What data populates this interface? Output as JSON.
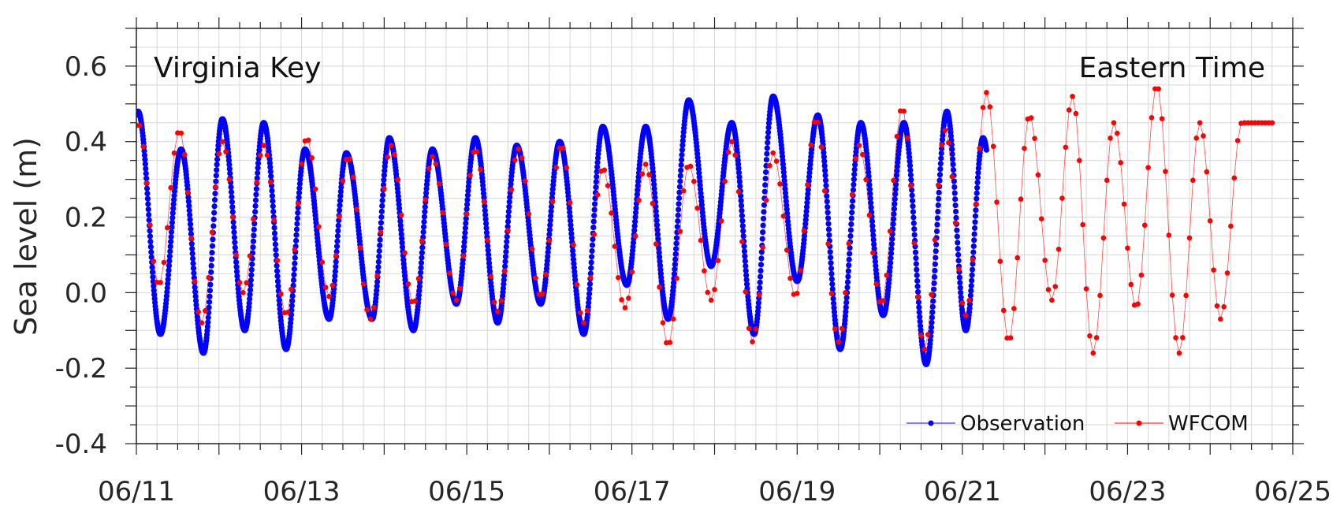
{
  "chart_data": {
    "type": "line",
    "title": "",
    "xlabel": "",
    "ylabel": "Sea level (m)",
    "ylim": [
      -0.4,
      0.7
    ],
    "xlim": [
      "2024-06-11 00:00",
      "2024-06-25 00:00"
    ],
    "x_tick_labels": [
      "06/11",
      "06/13",
      "06/15",
      "06/17",
      "06/19",
      "06/21",
      "06/23",
      "06/25"
    ],
    "y_tick_labels": [
      "-0.4",
      "-0.2",
      "0.0",
      "0.2",
      "0.4",
      "0.6"
    ],
    "y_ticks": [
      -0.4,
      -0.2,
      0.0,
      0.2,
      0.4,
      0.6
    ],
    "grid": true,
    "legend_position": "bottom-right",
    "annotations": {
      "left": "Virginia Key",
      "right": "Eastern Time"
    },
    "tide_period_hours": 12.42,
    "series": [
      {
        "name": "Observation",
        "color": "#0000ff",
        "marker": "dot",
        "x_start": "2024-06-11 00:00",
        "x_end": "2024-06-21 07:00",
        "sample_interval_hours": 0.1,
        "peaks": [
          {
            "x": "2024-06-11 00:30",
            "y": 0.48
          },
          {
            "x": "2024-06-11 13:00",
            "y": 0.38
          },
          {
            "x": "2024-06-12 01:00",
            "y": 0.46
          },
          {
            "x": "2024-06-12 13:00",
            "y": 0.45
          },
          {
            "x": "2024-06-13 01:00",
            "y": 0.38
          },
          {
            "x": "2024-06-13 13:00",
            "y": 0.37
          },
          {
            "x": "2024-06-14 01:30",
            "y": 0.41
          },
          {
            "x": "2024-06-14 14:00",
            "y": 0.38
          },
          {
            "x": "2024-06-15 02:30",
            "y": 0.41
          },
          {
            "x": "2024-06-15 14:30",
            "y": 0.39
          },
          {
            "x": "2024-06-16 03:00",
            "y": 0.4
          },
          {
            "x": "2024-06-16 15:30",
            "y": 0.44
          },
          {
            "x": "2024-06-17 04:00",
            "y": 0.44
          },
          {
            "x": "2024-06-17 16:30",
            "y": 0.51
          },
          {
            "x": "2024-06-18 05:00",
            "y": 0.45
          },
          {
            "x": "2024-06-18 17:00",
            "y": 0.52
          },
          {
            "x": "2024-06-19 06:00",
            "y": 0.47
          },
          {
            "x": "2024-06-19 18:30",
            "y": 0.45
          },
          {
            "x": "2024-06-20 07:00",
            "y": 0.45
          },
          {
            "x": "2024-06-20 19:30",
            "y": 0.48
          },
          {
            "x": "2024-06-21 06:00",
            "y": 0.41
          }
        ],
        "troughs": [
          {
            "x": "2024-06-11 07:00",
            "y": -0.11
          },
          {
            "x": "2024-06-11 19:30",
            "y": -0.16
          },
          {
            "x": "2024-06-12 07:30",
            "y": -0.1
          },
          {
            "x": "2024-06-12 19:30",
            "y": -0.15
          },
          {
            "x": "2024-06-13 08:00",
            "y": -0.07
          },
          {
            "x": "2024-06-13 20:30",
            "y": -0.07
          },
          {
            "x": "2024-06-14 08:30",
            "y": -0.1
          },
          {
            "x": "2024-06-14 21:00",
            "y": -0.03
          },
          {
            "x": "2024-06-15 09:00",
            "y": -0.08
          },
          {
            "x": "2024-06-15 21:30",
            "y": -0.03
          },
          {
            "x": "2024-06-16 10:00",
            "y": -0.11
          },
          {
            "x": "2024-06-16 22:30",
            "y": 0.02
          },
          {
            "x": "2024-06-17 10:30",
            "y": -0.07
          },
          {
            "x": "2024-06-17 23:00",
            "y": 0.07
          },
          {
            "x": "2024-06-18 11:30",
            "y": -0.11
          },
          {
            "x": "2024-06-19 00:00",
            "y": 0.03
          },
          {
            "x": "2024-06-19 12:30",
            "y": -0.15
          },
          {
            "x": "2024-06-20 01:00",
            "y": -0.06
          },
          {
            "x": "2024-06-20 13:30",
            "y": -0.19
          },
          {
            "x": "2024-06-21 01:00",
            "y": -0.1
          }
        ]
      },
      {
        "name": "WFCOM",
        "color": "#ff0000",
        "marker": "dot",
        "x_start": "2024-06-11 00:00",
        "x_end": "2024-06-24 18:00",
        "sample_interval_hours": 1,
        "peaks": [
          {
            "x": "2024-06-11 00:30",
            "y": 0.45
          },
          {
            "x": "2024-06-11 12:30",
            "y": 0.43
          },
          {
            "x": "2024-06-12 01:00",
            "y": 0.4
          },
          {
            "x": "2024-06-12 13:00",
            "y": 0.39
          },
          {
            "x": "2024-06-13 01:30",
            "y": 0.41
          },
          {
            "x": "2024-06-13 13:30",
            "y": 0.36
          },
          {
            "x": "2024-06-14 02:00",
            "y": 0.39
          },
          {
            "x": "2024-06-14 14:00",
            "y": 0.36
          },
          {
            "x": "2024-06-15 02:30",
            "y": 0.38
          },
          {
            "x": "2024-06-15 15:00",
            "y": 0.38
          },
          {
            "x": "2024-06-16 03:30",
            "y": 0.39
          },
          {
            "x": "2024-06-16 15:30",
            "y": 0.33
          },
          {
            "x": "2024-06-17 04:00",
            "y": 0.34
          },
          {
            "x": "2024-06-17 16:30",
            "y": 0.34
          },
          {
            "x": "2024-06-18 05:00",
            "y": 0.4
          },
          {
            "x": "2024-06-18 17:00",
            "y": 0.37
          },
          {
            "x": "2024-06-19 05:30",
            "y": 0.46
          },
          {
            "x": "2024-06-19 18:00",
            "y": 0.39
          },
          {
            "x": "2024-06-20 06:30",
            "y": 0.49
          },
          {
            "x": "2024-06-20 19:00",
            "y": 0.43
          },
          {
            "x": "2024-06-21 07:00",
            "y": 0.53
          },
          {
            "x": "2024-06-21 19:30",
            "y": 0.47
          },
          {
            "x": "2024-06-22 08:00",
            "y": 0.52
          },
          {
            "x": "2024-06-22 20:00",
            "y": 0.45
          },
          {
            "x": "2024-06-23 08:30",
            "y": 0.55
          },
          {
            "x": "2024-06-23 21:00",
            "y": 0.45
          }
        ],
        "troughs": [
          {
            "x": "2024-06-11 06:30",
            "y": 0.02
          },
          {
            "x": "2024-06-11 19:00",
            "y": -0.08
          },
          {
            "x": "2024-06-12 07:00",
            "y": 0.0
          },
          {
            "x": "2024-06-12 19:30",
            "y": -0.06
          },
          {
            "x": "2024-06-13 08:00",
            "y": -0.01
          },
          {
            "x": "2024-06-13 20:00",
            "y": -0.07
          },
          {
            "x": "2024-06-14 08:30",
            "y": -0.03
          },
          {
            "x": "2024-06-14 21:00",
            "y": -0.02
          },
          {
            "x": "2024-06-15 09:00",
            "y": -0.05
          },
          {
            "x": "2024-06-15 21:30",
            "y": -0.01
          },
          {
            "x": "2024-06-16 10:00",
            "y": -0.08
          },
          {
            "x": "2024-06-16 22:00",
            "y": -0.04
          },
          {
            "x": "2024-06-17 10:30",
            "y": -0.14
          },
          {
            "x": "2024-06-17 23:00",
            "y": -0.02
          },
          {
            "x": "2024-06-18 11:00",
            "y": -0.13
          },
          {
            "x": "2024-06-18 23:30",
            "y": -0.01
          },
          {
            "x": "2024-06-19 12:00",
            "y": -0.13
          },
          {
            "x": "2024-06-20 00:30",
            "y": -0.03
          },
          {
            "x": "2024-06-20 13:00",
            "y": -0.15
          },
          {
            "x": "2024-06-21 01:00",
            "y": -0.06
          },
          {
            "x": "2024-06-21 13:30",
            "y": -0.13
          },
          {
            "x": "2024-06-22 02:00",
            "y": -0.02
          },
          {
            "x": "2024-06-22 14:00",
            "y": -0.16
          },
          {
            "x": "2024-06-23 02:30",
            "y": -0.04
          },
          {
            "x": "2024-06-23 15:00",
            "y": -0.16
          },
          {
            "x": "2024-06-24 03:00",
            "y": -0.07
          }
        ]
      }
    ]
  }
}
